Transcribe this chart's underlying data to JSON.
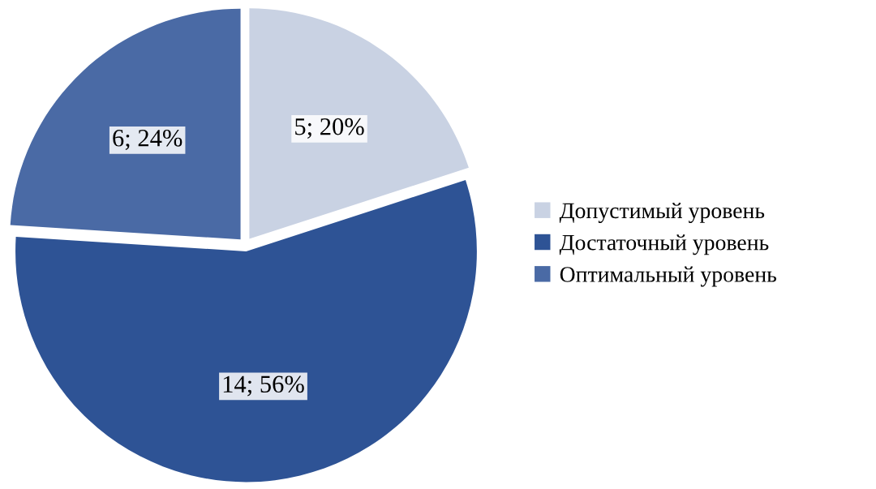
{
  "chart_data": {
    "type": "pie",
    "categories": [
      "Допустимый уровень",
      "Достаточный уровень",
      "Оптимальный уровень"
    ],
    "values": [
      5,
      14,
      6
    ],
    "value_labels": [
      "5; 20%",
      "14; 56%",
      "6; 24%"
    ],
    "colors": [
      "#c9d2e3",
      "#2e5395",
      "#4a6aa5"
    ],
    "legend": "right"
  }
}
